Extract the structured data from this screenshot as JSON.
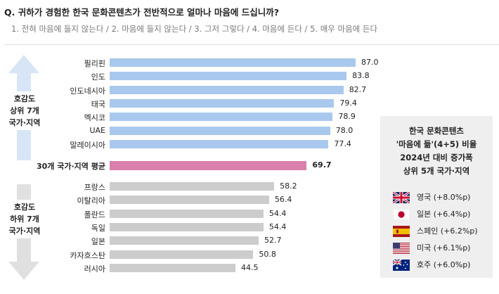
{
  "question": {
    "title": "Q. 귀하가 경험한 한국 문화콘텐츠가 전반적으로 얼마나 마음에 드십니까?",
    "scale": "1. 전혀 마음에 들지 않는다 / 2. 마음에 들지 않는다 / 3. 그저 그렇다 / 4. 마음에 든다 / 5. 매우 마음에 든다"
  },
  "groups": {
    "top": "호감도\n상위 7개\n국가·지역",
    "bottom": "호감도\n하위 7개\n국가·지역"
  },
  "colors": {
    "top": "#a9c8ee",
    "average": "#d97fae",
    "bottom": "#cccccc",
    "arrow": "#d8e5f6",
    "arrow_down": "#e0e0e0"
  },
  "chart_data": {
    "type": "bar",
    "orientation": "horizontal",
    "xlim": [
      0,
      100
    ],
    "categories": [
      "필리핀",
      "인도",
      "인도네시아",
      "태국",
      "멕시코",
      "UAE",
      "말레이시아",
      "30개 국가·지역 평균",
      "프랑스",
      "이탈리아",
      "폴란드",
      "독일",
      "일본",
      "카자흐스탄",
      "러시아"
    ],
    "values": [
      87.0,
      83.8,
      82.7,
      79.4,
      78.9,
      78.0,
      77.4,
      69.7,
      58.2,
      56.4,
      54.4,
      54.4,
      52.7,
      50.8,
      44.5
    ],
    "value_labels": [
      "87.0",
      "83.8",
      "82.7",
      "79.4",
      "78.9",
      "78.0",
      "77.4",
      "69.7",
      "58.2",
      "56.4",
      "54.4",
      "54.4",
      "52.7",
      "50.8",
      "44.5"
    ],
    "groups": [
      "top",
      "top",
      "top",
      "top",
      "top",
      "top",
      "top",
      "average",
      "bottom",
      "bottom",
      "bottom",
      "bottom",
      "bottom",
      "bottom",
      "bottom"
    ]
  },
  "sidebox": {
    "title": "한국 문화콘텐츠\n'마음에 듦'(4+5) 비율\n2024년 대비 증가폭\n상위 5개 국가·지역",
    "items": [
      {
        "label": "영국 (+8.0%p)",
        "flag": "uk-flag-icon"
      },
      {
        "label": "일본 (+6.4%p)",
        "flag": "japan-flag-icon"
      },
      {
        "label": "스페인 (+6.2%p)",
        "flag": "spain-flag-icon"
      },
      {
        "label": "미국 (+6.1%p)",
        "flag": "usa-flag-icon"
      },
      {
        "label": "호주 (+6.0%p)",
        "flag": "australia-flag-icon"
      }
    ]
  }
}
